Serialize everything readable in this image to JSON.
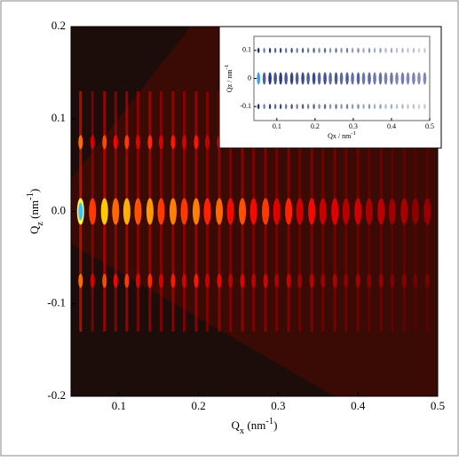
{
  "chart_data": {
    "type": "heatmap",
    "xlim": [
      0.04,
      0.5
    ],
    "ylim": [
      -0.2,
      0.2
    ],
    "xticks": [
      0.1,
      0.2,
      0.3,
      0.4,
      0.5
    ],
    "yticks": [
      0.2,
      0.1,
      {
        "value": 0,
        "label": "0.0"
      },
      -0.1,
      -0.2
    ],
    "xlabel": [
      "Q",
      "x",
      " (nm",
      "-1",
      ")"
    ],
    "ylabel": [
      "Q",
      "z",
      " (nm",
      "-1",
      ")"
    ],
    "peaks": {
      "qx": [
        0.052,
        0.067,
        0.082,
        0.096,
        0.11,
        0.124,
        0.139,
        0.153,
        0.168,
        0.182,
        0.197,
        0.211,
        0.226,
        0.24,
        0.255,
        0.269,
        0.284,
        0.298,
        0.313,
        0.327,
        0.342,
        0.356,
        0.371,
        0.385,
        0.4,
        0.414,
        0.429,
        0.443,
        0.458,
        0.472,
        0.487
      ],
      "intensity": [
        1,
        0.6,
        0.9,
        0.7,
        0.85,
        0.65,
        0.8,
        0.6,
        0.75,
        0.6,
        0.75,
        0.55,
        0.7,
        0.5,
        0.65,
        0.5,
        0.6,
        0.45,
        0.55,
        0.4,
        0.5,
        0.38,
        0.45,
        0.33,
        0.4,
        0.3,
        0.35,
        0.27,
        0.3,
        0.22,
        0.25
      ]
    },
    "inset": {
      "xlim": [
        0.04,
        0.5
      ],
      "ylim": [
        -0.15,
        0.15
      ],
      "xticks": [
        0.1,
        0.2,
        0.3,
        0.4,
        0.5
      ],
      "yticks": [
        0.1,
        0,
        -0.1
      ],
      "xlabel": [
        "Qx / nm",
        "-1"
      ],
      "ylabel": [
        "Qz / nm",
        "-1"
      ]
    }
  }
}
